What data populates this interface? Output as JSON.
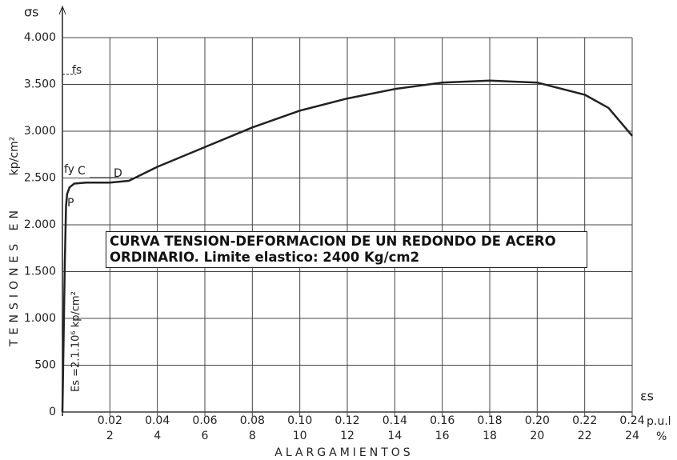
{
  "chart_data": {
    "type": "line",
    "title": "CURVA TENSION-DEFORMACION DE UN REDONDO DE ACERO ORDINARIO. Limite elastico: 2400 Kg/cm2",
    "y_symbol": "σs",
    "x_symbol": "εs",
    "ylabel": "TENSIONES EN",
    "ylabel_unit": "kp/cm²",
    "xlabel": "ALARGAMIENTOS",
    "x_unit": "p.u.l",
    "x2_unit": "%",
    "annotations": [
      "fs",
      "fy",
      "C",
      "D",
      "P",
      "Es =2.1.10⁶ kp/cm²"
    ],
    "x": [
      0,
      0.001,
      0.0015,
      0.002,
      0.003,
      0.005,
      0.01,
      0.02,
      0.028,
      0.04,
      0.06,
      0.08,
      0.1,
      0.12,
      0.14,
      0.16,
      0.18,
      0.2,
      0.22,
      0.23,
      0.24
    ],
    "series": [
      {
        "name": "σs",
        "color": "#222222",
        "values": [
          0,
          1600,
          2200,
          2330,
          2400,
          2440,
          2450,
          2450,
          2470,
          2620,
          2830,
          3040,
          3220,
          3350,
          3450,
          3520,
          3540,
          3520,
          3390,
          3250,
          2950
        ]
      }
    ],
    "xlim": [
      0,
      0.24
    ],
    "ylim": [
      0,
      4000
    ],
    "xticks": [
      0.02,
      0.04,
      0.06,
      0.08,
      {
        "value": 0.1,
        "label": "0.10"
      },
      0.12,
      0.14,
      0.16,
      0.18,
      {
        "value": 0.2,
        "label": "0.20"
      },
      0.22,
      0.24
    ],
    "x2lim": [
      0,
      24
    ],
    "x2ticks": [
      2,
      4,
      6,
      8,
      10,
      12,
      14,
      16,
      18,
      20,
      22,
      24
    ],
    "yticks": [
      0,
      500,
      {
        "value": 1000,
        "label": "1.000"
      },
      {
        "value": 1500,
        "label": "1.500"
      },
      {
        "value": 2000,
        "label": "2.000"
      },
      {
        "value": 2500,
        "label": "2.500"
      },
      {
        "value": 3000,
        "label": "3.000"
      },
      {
        "value": 3500,
        "label": "3.500"
      },
      {
        "value": 4000,
        "label": "4.000"
      }
    ],
    "grid": true
  }
}
